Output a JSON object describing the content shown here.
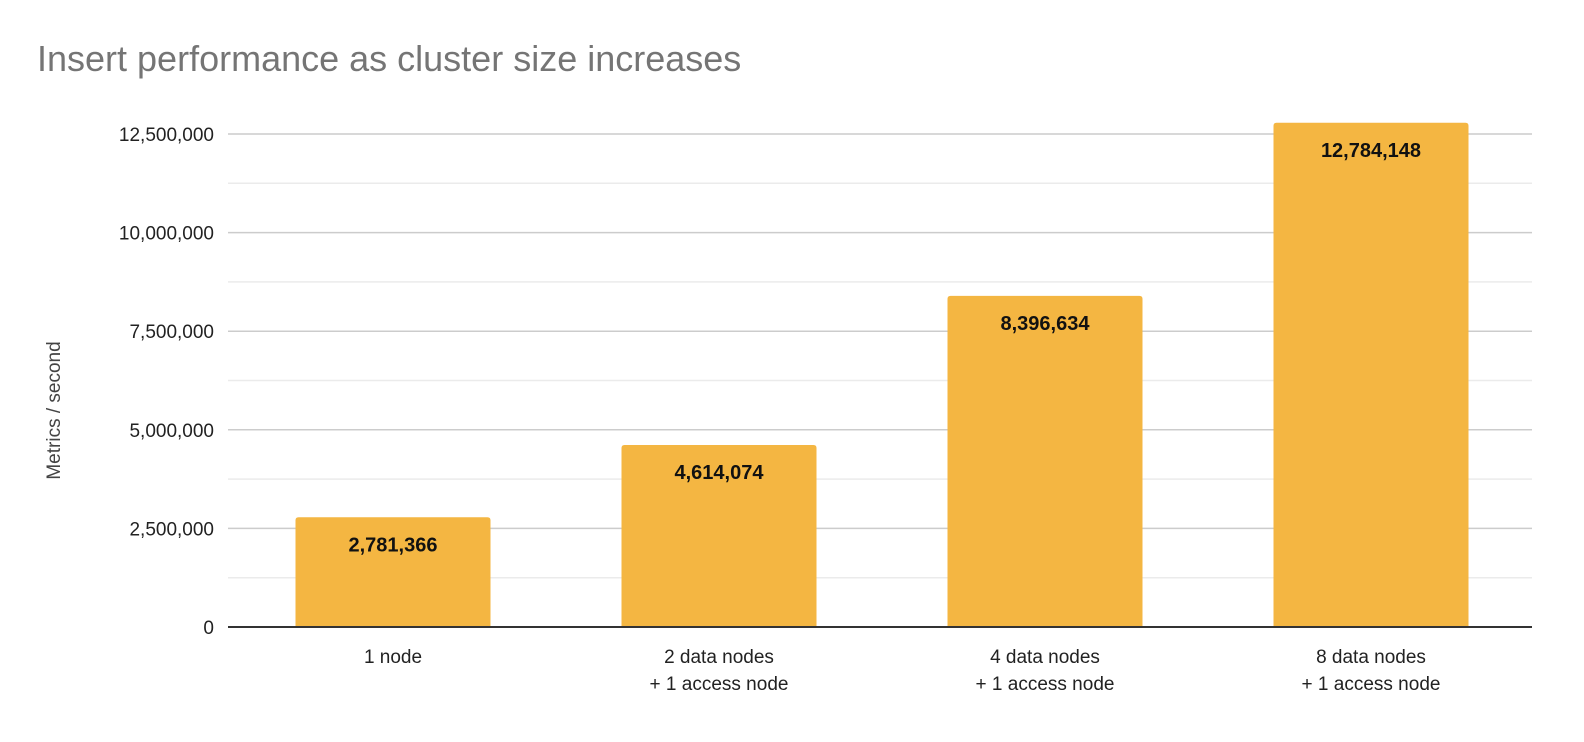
{
  "chart_data": {
    "type": "bar",
    "title": "Insert performance as cluster size increases",
    "xlabel": "",
    "ylabel": "Metrics / second",
    "categories": [
      [
        "1 node"
      ],
      [
        "2 data nodes",
        "+ 1 access node"
      ],
      [
        "4 data nodes",
        "+ 1 access node"
      ],
      [
        "8 data nodes",
        "+ 1 access node"
      ]
    ],
    "values": [
      2781366,
      4614074,
      8396634,
      12784148
    ],
    "data_labels": [
      "2,781,366",
      "4,614,074",
      "8,396,634",
      "12,784,148"
    ],
    "ylim": [
      0,
      12500000
    ],
    "yticks": [
      0,
      2500000,
      5000000,
      7500000,
      10000000,
      12500000
    ],
    "ytick_labels": [
      "0",
      "2,500,000",
      "5,000,000",
      "7,500,000",
      "10,000,000",
      "12,500,000"
    ],
    "minor_gridlines": true,
    "grid": true,
    "legend": "none",
    "bar_color": "#F4B642"
  }
}
